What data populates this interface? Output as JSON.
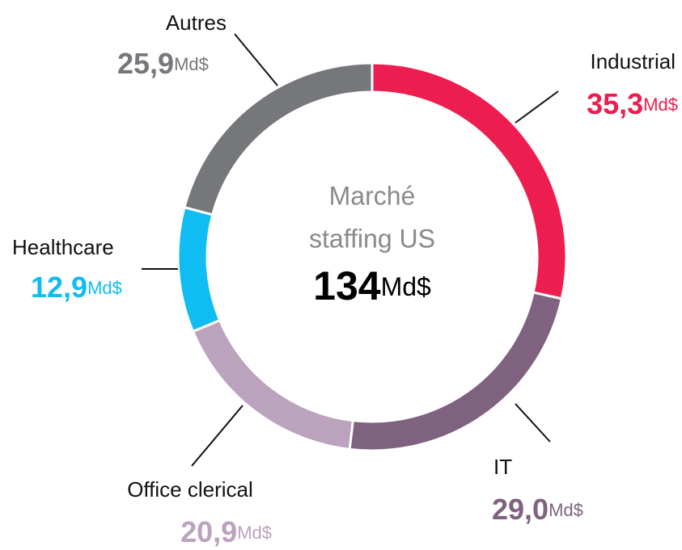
{
  "chart_data": {
    "type": "donut",
    "categories": [
      "Industrial",
      "IT",
      "Office clerical",
      "Healthcare",
      "Autres"
    ],
    "values": [
      35.3,
      29.0,
      20.9,
      12.9,
      25.9
    ],
    "value_labels": [
      "35,3",
      "29,0",
      "20,9",
      "12,9",
      "25,9"
    ],
    "colors": [
      "#ee1d4f",
      "#7f6280",
      "#bba3be",
      "#0fbdf2",
      "#76777a"
    ],
    "unit": "Md$",
    "center_lines": [
      "Marché",
      "staffing US"
    ],
    "center_total": 134
  }
}
